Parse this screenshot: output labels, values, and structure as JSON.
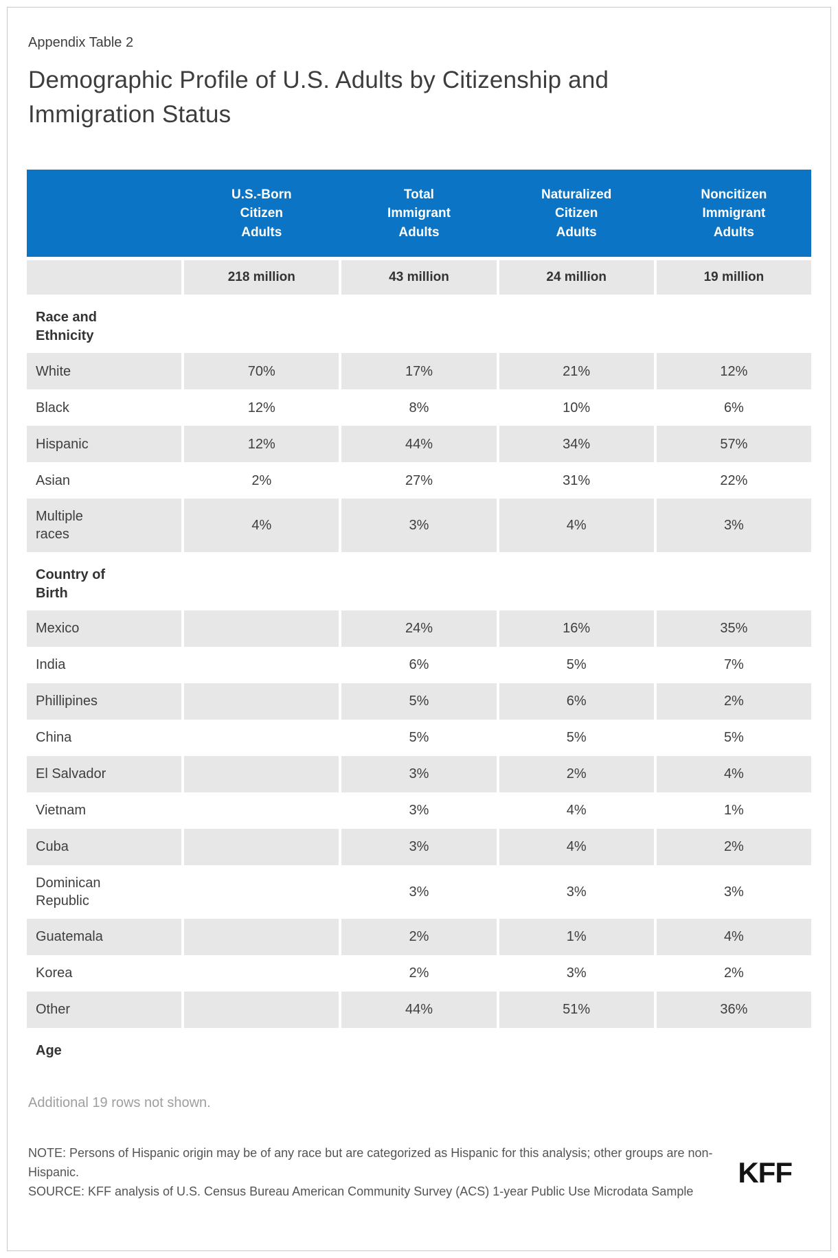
{
  "page": {
    "appendix_label": "Appendix Table 2",
    "title": "Demographic Profile of U.S. Adults by Citizenship and Immigration Status"
  },
  "chart_data": {
    "type": "table",
    "title": "Demographic Profile of U.S. Adults by Citizenship and Immigration Status",
    "columns": [
      "U.S.-Born Citizen Adults",
      "Total Immigrant Adults",
      "Naturalized Citizen Adults",
      "Noncitizen Immigrant Adults"
    ],
    "column_totals": [
      "218 million",
      "43 million",
      "24 million",
      "19 million"
    ],
    "sections": [
      {
        "header": "Race and Ethnicity",
        "rows": [
          {
            "label": "White",
            "values": [
              "70%",
              "17%",
              "21%",
              "12%"
            ]
          },
          {
            "label": "Black",
            "values": [
              "12%",
              "8%",
              "10%",
              "6%"
            ]
          },
          {
            "label": "Hispanic",
            "values": [
              "12%",
              "44%",
              "34%",
              "57%"
            ]
          },
          {
            "label": "Asian",
            "values": [
              "2%",
              "27%",
              "31%",
              "22%"
            ]
          },
          {
            "label": "Multiple races",
            "values": [
              "4%",
              "3%",
              "4%",
              "3%"
            ]
          }
        ]
      },
      {
        "header": "Country of Birth",
        "rows": [
          {
            "label": "Mexico",
            "values": [
              "",
              "24%",
              "16%",
              "35%"
            ]
          },
          {
            "label": "India",
            "values": [
              "",
              "6%",
              "5%",
              "7%"
            ]
          },
          {
            "label": "Phillipines",
            "values": [
              "",
              "5%",
              "6%",
              "2%"
            ]
          },
          {
            "label": "China",
            "values": [
              "",
              "5%",
              "5%",
              "5%"
            ]
          },
          {
            "label": "El Salvador",
            "values": [
              "",
              "3%",
              "2%",
              "4%"
            ]
          },
          {
            "label": "Vietnam",
            "values": [
              "",
              "3%",
              "4%",
              "1%"
            ]
          },
          {
            "label": "Cuba",
            "values": [
              "",
              "3%",
              "4%",
              "2%"
            ]
          },
          {
            "label": "Dominican Republic",
            "values": [
              "",
              "3%",
              "3%",
              "3%"
            ]
          },
          {
            "label": "Guatemala",
            "values": [
              "",
              "2%",
              "1%",
              "4%"
            ]
          },
          {
            "label": "Korea",
            "values": [
              "",
              "2%",
              "3%",
              "2%"
            ]
          },
          {
            "label": "Other",
            "values": [
              "",
              "44%",
              "51%",
              "36%"
            ]
          }
        ]
      },
      {
        "header": "Age",
        "rows": []
      }
    ]
  },
  "footer": {
    "additional_rows_note": "Additional 19 rows not shown.",
    "note": "NOTE: Persons of Hispanic origin may be of any race but are categorized as Hispanic for this analysis; other groups are non-Hispanic.",
    "source": "SOURCE: KFF analysis of U.S. Census Bureau American Community Survey (ACS) 1-year Public Use Microdata Sample",
    "logo": "KFF"
  },
  "colors": {
    "header_blue": "#0B74C4",
    "row_shade": "#E7E7E7",
    "text": "#3E3E3E",
    "title": "#3D3D3D",
    "note_text": "#545454",
    "muted": "#9E9E9E",
    "border": "#C9C9C9"
  }
}
